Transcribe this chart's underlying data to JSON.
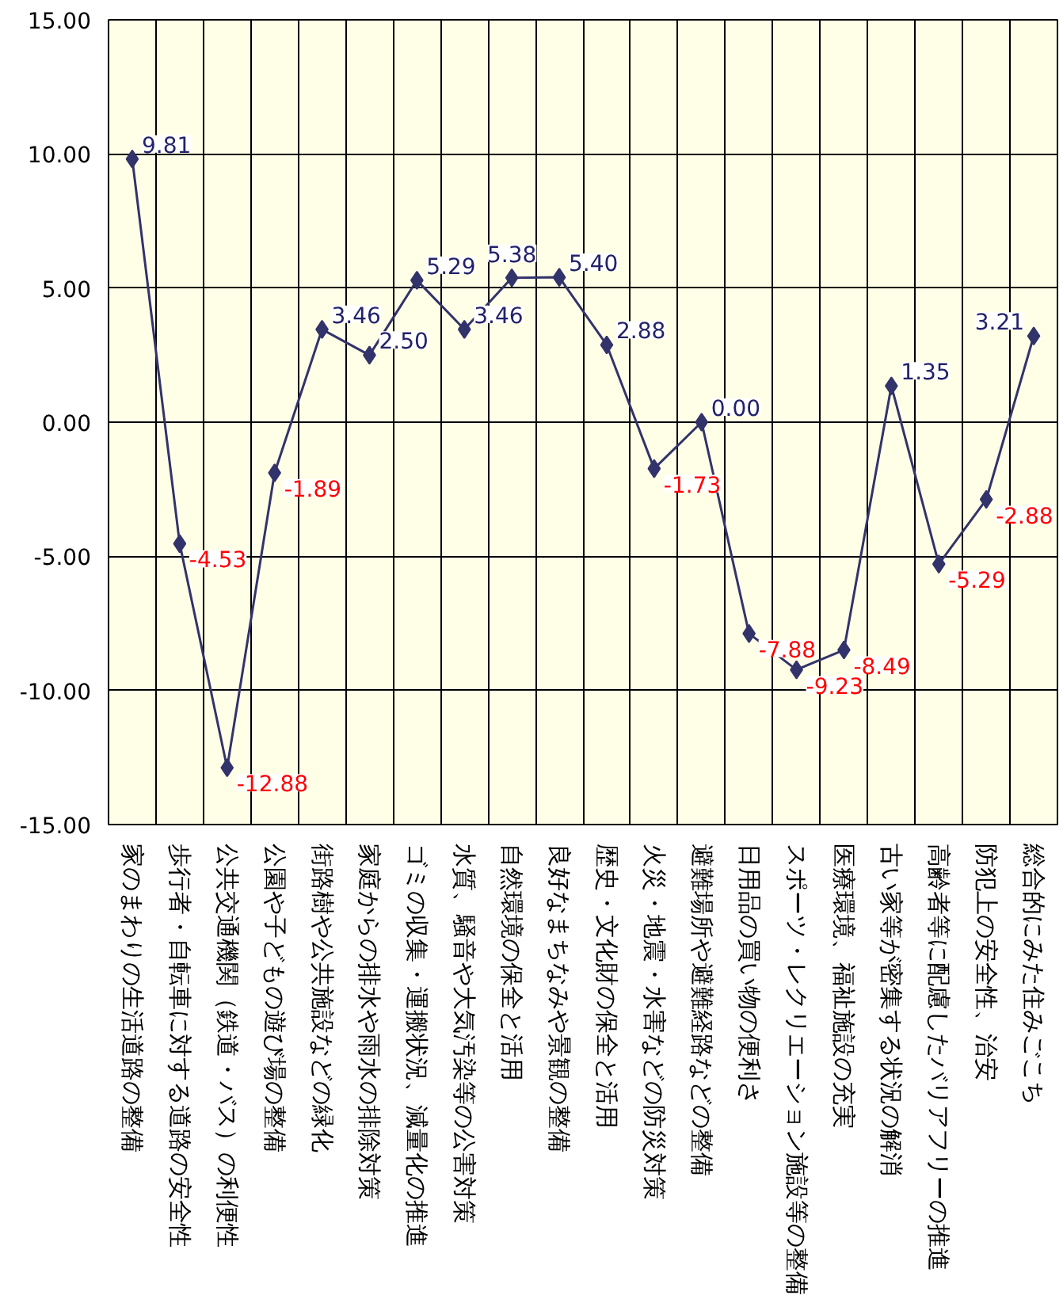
{
  "chart_data": {
    "type": "line",
    "categories": [
      "家のまわりの生活道路の整備",
      "歩行者・自転車に対する道路の安全性",
      "公共交通機関（鉄道・バス）の利便性",
      "公園や子どもの遊び場の整備",
      "街路樹や公共施設などの緑化",
      "家庭からの排水や雨水の排除対策",
      "ゴミの収集・運搬状況、減量化の推進",
      "水質、騒音や大気汚染等の公害対策",
      "自然環境の保全と活用",
      "良好なまちなみや景観の整備",
      "歴史・文化財の保全と活用",
      "火災・地震・水害などの防災対策",
      "避難場所や避難経路などの整備",
      "日用品の買い物の便利さ",
      "スポーツ・レクリエーション施設等の整備",
      "医療環境、福祉施設の充実",
      "古い家等が密集する状況の解消",
      "高齢者等に配慮したバリアフリーの推進",
      "防犯上の安全性、治安",
      "総合的にみた住みごこち"
    ],
    "series": [
      {
        "color": "#33336b",
        "values": [
          9.81,
          -4.53,
          -12.88,
          -1.89,
          3.46,
          2.5,
          5.29,
          3.46,
          5.38,
          5.4,
          2.88,
          -1.73,
          0.0,
          -7.88,
          -9.23,
          -8.49,
          1.35,
          -5.29,
          -2.88,
          3.21
        ],
        "value_labels": [
          "9.81",
          "-4.53",
          "-12.88",
          "-1.89",
          "3.46",
          "2.50",
          "5.29",
          "3.46",
          "5.38",
          "5.40",
          "2.88",
          "-1.73",
          "0.00",
          "-7.88",
          "-9.23",
          "-8.49",
          "1.35",
          "-5.29",
          "-2.88",
          "3.21"
        ]
      }
    ],
    "ylim": [
      -15,
      15
    ],
    "yticks": [
      {
        "value": -15,
        "label": "-15.00"
      },
      {
        "value": -10,
        "label": "-10.00"
      },
      {
        "value": -5,
        "label": "-5.00"
      },
      {
        "value": 0,
        "label": "0.00"
      },
      {
        "value": 5,
        "label": "5.00"
      },
      {
        "value": 10,
        "label": "10.00"
      },
      {
        "value": 15,
        "label": "15.00"
      }
    ],
    "grid": true,
    "marker": "diamond",
    "line_style": "solid"
  }
}
